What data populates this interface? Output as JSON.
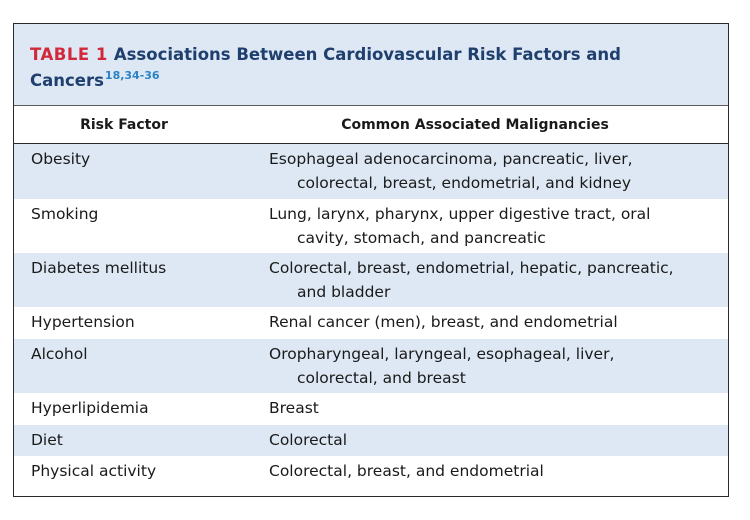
{
  "table": {
    "label": "TABLE 1",
    "title": "Associations Between Cardiovascular Risk Factors and",
    "title_line2": "Cancers",
    "refs": "18,34-36",
    "headers": {
      "risk_factor": "Risk Factor",
      "malignancies": "Common Associated Malignancies"
    },
    "rows": [
      {
        "factor": "Obesity",
        "line1": "Esophageal adenocarcinoma, pancreatic, liver,",
        "line2": "colorectal, breast, endometrial, and kidney"
      },
      {
        "factor": "Smoking",
        "line1": "Lung, larynx, pharynx, upper digestive tract, oral",
        "line2": "cavity, stomach, and pancreatic"
      },
      {
        "factor": "Diabetes mellitus",
        "line1": "Colorectal, breast, endometrial, hepatic, pancreatic,",
        "line2": "and bladder"
      },
      {
        "factor": "Hypertension",
        "line1": "Renal cancer (men), breast, and endometrial"
      },
      {
        "factor": "Alcohol",
        "line1": "Oropharyngeal, laryngeal, esophageal, liver,",
        "line2": "colorectal, and breast"
      },
      {
        "factor": "Hyperlipidemia",
        "line1": "Breast"
      },
      {
        "factor": "Diet",
        "line1": "Colorectal"
      },
      {
        "factor": "Physical activity",
        "line1": "Colorectal, breast, and endometrial"
      }
    ],
    "colors": {
      "shade": "#dde8f4",
      "title": "#1f3f6e",
      "label": "#d2283c",
      "refs": "#2a83c5",
      "border": "#2b2b2b"
    }
  }
}
